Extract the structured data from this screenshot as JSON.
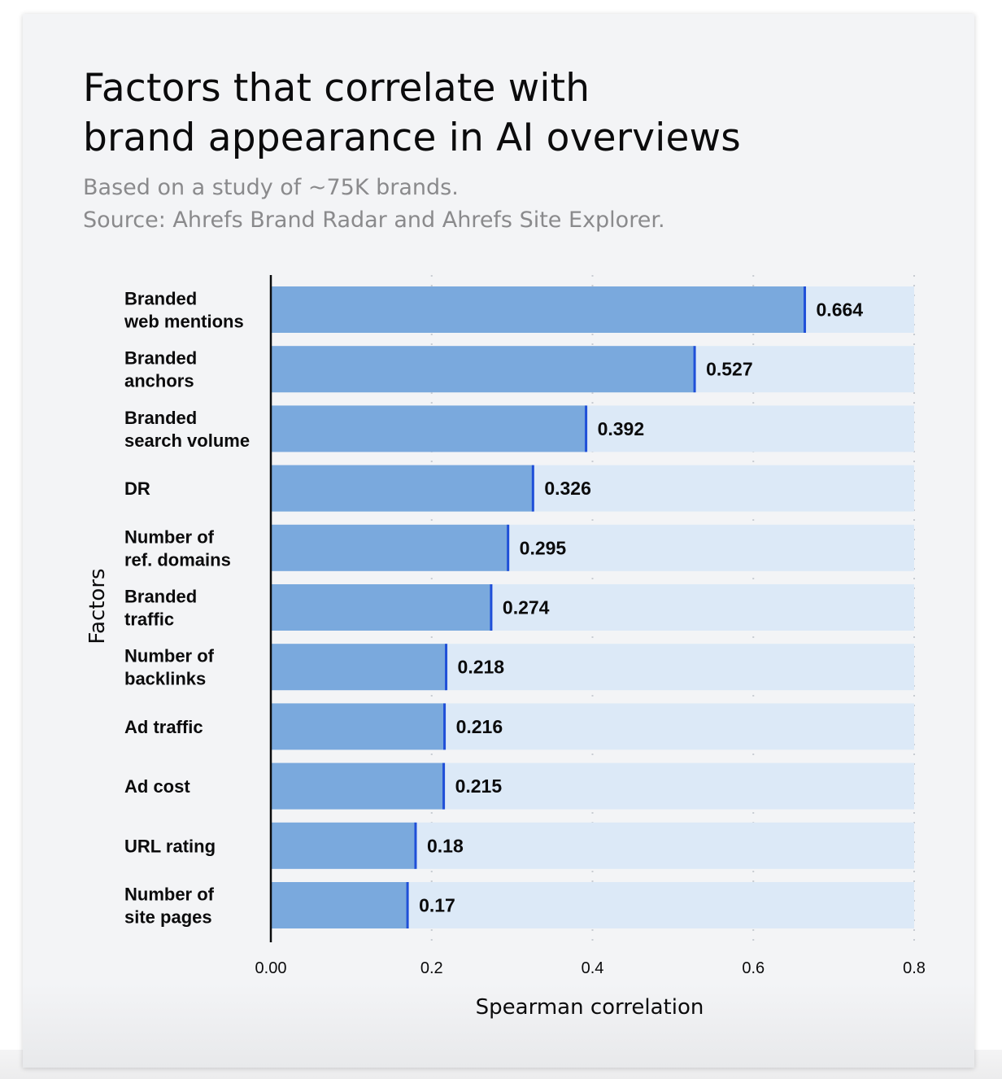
{
  "header": {
    "title_line1": "Factors that correlate with",
    "title_line2": "brand appearance in AI overviews",
    "subtitle_line1": "Based on a study of ~75K brands.",
    "subtitle_line2": "Source: Ahrefs Brand Radar and Ahrefs Site Explorer."
  },
  "colors": {
    "bar_fill": "#7aa9dd",
    "bar_track": "#dce9f7",
    "bar_end_marker": "#1f4fd8",
    "axis": "#0b0b0c",
    "grid": "#c8ccd2"
  },
  "chart_data": {
    "type": "bar",
    "orientation": "horizontal",
    "title": "Factors that correlate with brand appearance in AI overviews",
    "subtitle": "Based on a study of ~75K brands. Source: Ahrefs Brand Radar and Ahrefs Site Explorer.",
    "xlabel": "Spearman correlation",
    "ylabel": "Factors",
    "xlim": [
      0,
      0.8
    ],
    "xticks": [
      0,
      0.2,
      0.4,
      0.6,
      0.8
    ],
    "xtick_labels": [
      "0.00",
      "0.2",
      "0.4",
      "0.6",
      "0.8"
    ],
    "grid": "vertical dotted",
    "categories": [
      [
        "Branded",
        "web mentions"
      ],
      [
        "Branded",
        "anchors"
      ],
      [
        "Branded",
        "search volume"
      ],
      [
        "DR"
      ],
      [
        "Number of",
        "ref. domains"
      ],
      [
        "Branded",
        "traffic"
      ],
      [
        "Number of",
        "backlinks"
      ],
      [
        "Ad traffic"
      ],
      [
        "Ad cost"
      ],
      [
        "URL rating"
      ],
      [
        "Number of",
        "site pages"
      ]
    ],
    "values": [
      0.664,
      0.527,
      0.392,
      0.326,
      0.295,
      0.274,
      0.218,
      0.216,
      0.215,
      0.18,
      0.17
    ],
    "value_labels": [
      "0.664",
      "0.527",
      "0.392",
      "0.326",
      "0.295",
      "0.274",
      "0.218",
      "0.216",
      "0.215",
      "0.18",
      "0.17"
    ]
  }
}
